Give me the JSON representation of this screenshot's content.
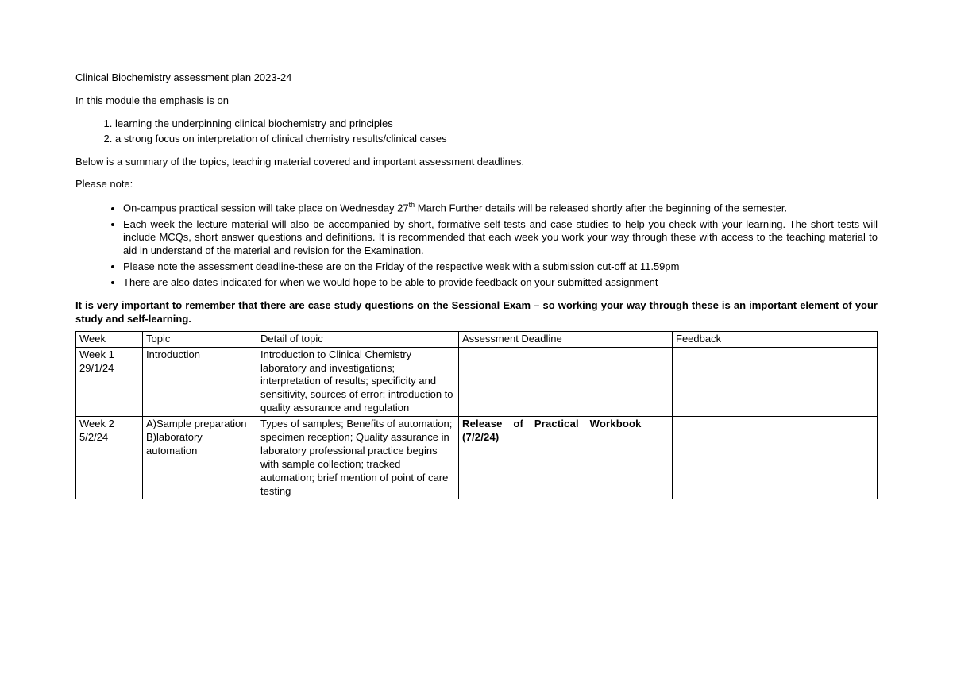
{
  "title": "Clinical Biochemistry assessment plan 2023-24",
  "intro": "In this module the emphasis is on",
  "emphasis_items": [
    "learning the underpinning clinical biochemistry and principles",
    "a strong focus on interpretation of clinical chemistry results/clinical cases"
  ],
  "summary_line": "Below is a summary of the topics, teaching material covered and important assessment deadlines.",
  "please_note_label": "Please note:",
  "notes": {
    "n1_a": "On-campus practical session will take place on Wednesday 27",
    "n1_sup": "th",
    "n1_b": " March  Further details will be released shortly after the beginning of the semester.",
    "n2": "Each week the lecture material will also be accompanied by short, formative self-tests and case studies to help you check with your learning. The short tests will include MCQs, short answer questions and definitions. It is recommended that each week you work your way through these with access to the teaching material to aid in understand of the material and revision for the Examination.",
    "n3": "Please note the assessment deadline-these are on the Friday of the respective week with a submission cut-off at 11.59pm",
    "n4": "There are also dates indicated for when we would hope to be able to provide feedback on your submitted assignment"
  },
  "important": "It is very important to remember that there are case study questions on the Sessional Exam – so working your way through these is an important element of your study and self-learning.",
  "table": {
    "headers": {
      "week": "Week",
      "topic": "Topic",
      "detail": "Detail of topic",
      "assessment": "Assessment Deadline",
      "feedback": "Feedback"
    },
    "rows": [
      {
        "week_a": "Week 1",
        "week_b": "29/1/24",
        "topic": "Introduction",
        "detail": "Introduction to Clinical Chemistry laboratory and investigations; interpretation of results; specificity and sensitivity, sources of error; introduction to quality assurance and regulation",
        "assessment": "",
        "feedback": ""
      },
      {
        "week_a": "Week 2",
        "week_b": "5/2/24",
        "topic": "A)Sample preparation B)laboratory automation",
        "detail": "Types of samples; Benefits of automation; specimen reception; Quality assurance in laboratory professional practice begins with sample collection;  tracked automation; brief mention of point of care testing",
        "assessment": "Release of Practical Workbook (7/2/24)",
        "feedback": ""
      }
    ]
  }
}
